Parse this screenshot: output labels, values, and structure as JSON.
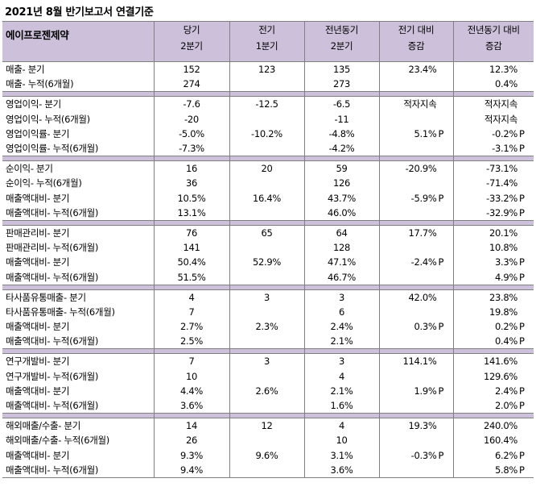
{
  "title": "2021년 8월 반기보고서 연결기준",
  "header": {
    "company": "에이프로젠제약",
    "columns": [
      {
        "line1": "당기",
        "line2": "2분기"
      },
      {
        "line1": "전기",
        "line2": "1분기"
      },
      {
        "line1": "전년동기",
        "line2": "2분기"
      },
      {
        "line1": "전기 대비",
        "line2": "증감"
      },
      {
        "line1": "전년동기 대비",
        "line2": "증감"
      }
    ]
  },
  "sections": [
    {
      "rows": [
        {
          "label": "매출- 분기",
          "cur": "152",
          "prev": "123",
          "yoy": "135",
          "qoq": "23.4%",
          "qoq_p": "",
          "yoyc": "12.3%",
          "yoyc_p": ""
        },
        {
          "label": "매출- 누적(6개월)",
          "cur": "274",
          "prev": "",
          "yoy": "273",
          "qoq": "",
          "qoq_p": "",
          "yoyc": "0.4%",
          "yoyc_p": ""
        }
      ]
    },
    {
      "rows": [
        {
          "label": "영업이익- 분기",
          "cur": "-7.6",
          "prev": "-12.5",
          "yoy": "-6.5",
          "qoq": "적자지속",
          "qoq_p": "",
          "yoyc": "적자지속",
          "yoyc_p": ""
        },
        {
          "label": "영업이익- 누적(6개월)",
          "cur": "-20",
          "prev": "",
          "yoy": "-11",
          "qoq": "",
          "qoq_p": "",
          "yoyc": "적자지속",
          "yoyc_p": ""
        },
        {
          "label": "영업이익률- 분기",
          "cur": "-5.0%",
          "prev": "-10.2%",
          "yoy": "-4.8%",
          "qoq": "5.1%",
          "qoq_p": "P",
          "yoyc": "-0.2%",
          "yoyc_p": "P"
        },
        {
          "label": "영업이익률- 누적(6개월)",
          "cur": "-7.3%",
          "prev": "",
          "yoy": "-4.2%",
          "qoq": "",
          "qoq_p": "",
          "yoyc": "-3.1%",
          "yoyc_p": "P"
        }
      ]
    },
    {
      "rows": [
        {
          "label": "순이익- 분기",
          "cur": "16",
          "prev": "20",
          "yoy": "59",
          "qoq": "-20.9%",
          "qoq_p": "",
          "yoyc": "-73.1%",
          "yoyc_p": ""
        },
        {
          "label": "순이익- 누적(6개월)",
          "cur": "36",
          "prev": "",
          "yoy": "126",
          "qoq": "",
          "qoq_p": "",
          "yoyc": "-71.4%",
          "yoyc_p": ""
        },
        {
          "label": "매출액대비- 분기",
          "cur": "10.5%",
          "prev": "16.4%",
          "yoy": "43.7%",
          "qoq": "-5.9%",
          "qoq_p": "P",
          "yoyc": "-33.2%",
          "yoyc_p": "P"
        },
        {
          "label": "매출액대비- 누적(6개월)",
          "cur": "13.1%",
          "prev": "",
          "yoy": "46.0%",
          "qoq": "",
          "qoq_p": "",
          "yoyc": "-32.9%",
          "yoyc_p": "P"
        }
      ]
    },
    {
      "rows": [
        {
          "label": "판매관리비- 분기",
          "cur": "76",
          "prev": "65",
          "yoy": "64",
          "qoq": "17.7%",
          "qoq_p": "",
          "yoyc": "20.1%",
          "yoyc_p": ""
        },
        {
          "label": "판매관리비- 누적(6개월)",
          "cur": "141",
          "prev": "",
          "yoy": "128",
          "qoq": "",
          "qoq_p": "",
          "yoyc": "10.8%",
          "yoyc_p": ""
        },
        {
          "label": "매출액대비- 분기",
          "cur": "50.4%",
          "prev": "52.9%",
          "yoy": "47.1%",
          "qoq": "-2.4%",
          "qoq_p": "P",
          "yoyc": "3.3%",
          "yoyc_p": "P"
        },
        {
          "label": "매출액대비- 누적(6개월)",
          "cur": "51.5%",
          "prev": "",
          "yoy": "46.7%",
          "qoq": "",
          "qoq_p": "",
          "yoyc": "4.9%",
          "yoyc_p": "P"
        }
      ]
    },
    {
      "rows": [
        {
          "label": "타사품유통매출- 분기",
          "cur": "4",
          "prev": "3",
          "yoy": "3",
          "qoq": "42.0%",
          "qoq_p": "",
          "yoyc": "23.8%",
          "yoyc_p": ""
        },
        {
          "label": "타사품유통매출- 누적(6개월)",
          "cur": "7",
          "prev": "",
          "yoy": "6",
          "qoq": "",
          "qoq_p": "",
          "yoyc": "19.8%",
          "yoyc_p": ""
        },
        {
          "label": "매출액대비- 분기",
          "cur": "2.7%",
          "prev": "2.3%",
          "yoy": "2.4%",
          "qoq": "0.3%",
          "qoq_p": "P",
          "yoyc": "0.2%",
          "yoyc_p": "P"
        },
        {
          "label": "매출액대비- 누적(6개월)",
          "cur": "2.5%",
          "prev": "",
          "yoy": "2.1%",
          "qoq": "",
          "qoq_p": "",
          "yoyc": "0.4%",
          "yoyc_p": "P"
        }
      ]
    },
    {
      "rows": [
        {
          "label": "연구개발비- 분기",
          "cur": "7",
          "prev": "3",
          "yoy": "3",
          "qoq": "114.1%",
          "qoq_p": "",
          "yoyc": "141.6%",
          "yoyc_p": ""
        },
        {
          "label": "연구개발비- 누적(6개월)",
          "cur": "10",
          "prev": "",
          "yoy": "4",
          "qoq": "",
          "qoq_p": "",
          "yoyc": "129.6%",
          "yoyc_p": ""
        },
        {
          "label": "매출액대비- 분기",
          "cur": "4.4%",
          "prev": "2.6%",
          "yoy": "2.1%",
          "qoq": "1.9%",
          "qoq_p": "P",
          "yoyc": "2.4%",
          "yoyc_p": "P"
        },
        {
          "label": "매출액대비- 누적(6개월)",
          "cur": "3.6%",
          "prev": "",
          "yoy": "1.6%",
          "qoq": "",
          "qoq_p": "",
          "yoyc": "2.0%",
          "yoyc_p": "P"
        }
      ]
    },
    {
      "rows": [
        {
          "label": "해외매출/수출- 분기",
          "cur": "14",
          "prev": "12",
          "yoy": "4",
          "qoq": "19.3%",
          "qoq_p": "",
          "yoyc": "240.0%",
          "yoyc_p": ""
        },
        {
          "label": "해외매출/수출- 누적(6개월)",
          "cur": "26",
          "prev": "",
          "yoy": "10",
          "qoq": "",
          "qoq_p": "",
          "yoyc": "160.4%",
          "yoyc_p": ""
        },
        {
          "label": "매출액대비- 분기",
          "cur": "9.3%",
          "prev": "9.6%",
          "yoy": "3.1%",
          "qoq": "-0.3%",
          "qoq_p": "P",
          "yoyc": "6.2%",
          "yoyc_p": "P"
        },
        {
          "label": "매출액대비- 누적(6개월)",
          "cur": "9.4%",
          "prev": "",
          "yoy": "3.6%",
          "qoq": "",
          "qoq_p": "",
          "yoyc": "5.8%",
          "yoyc_p": "P"
        }
      ]
    }
  ]
}
